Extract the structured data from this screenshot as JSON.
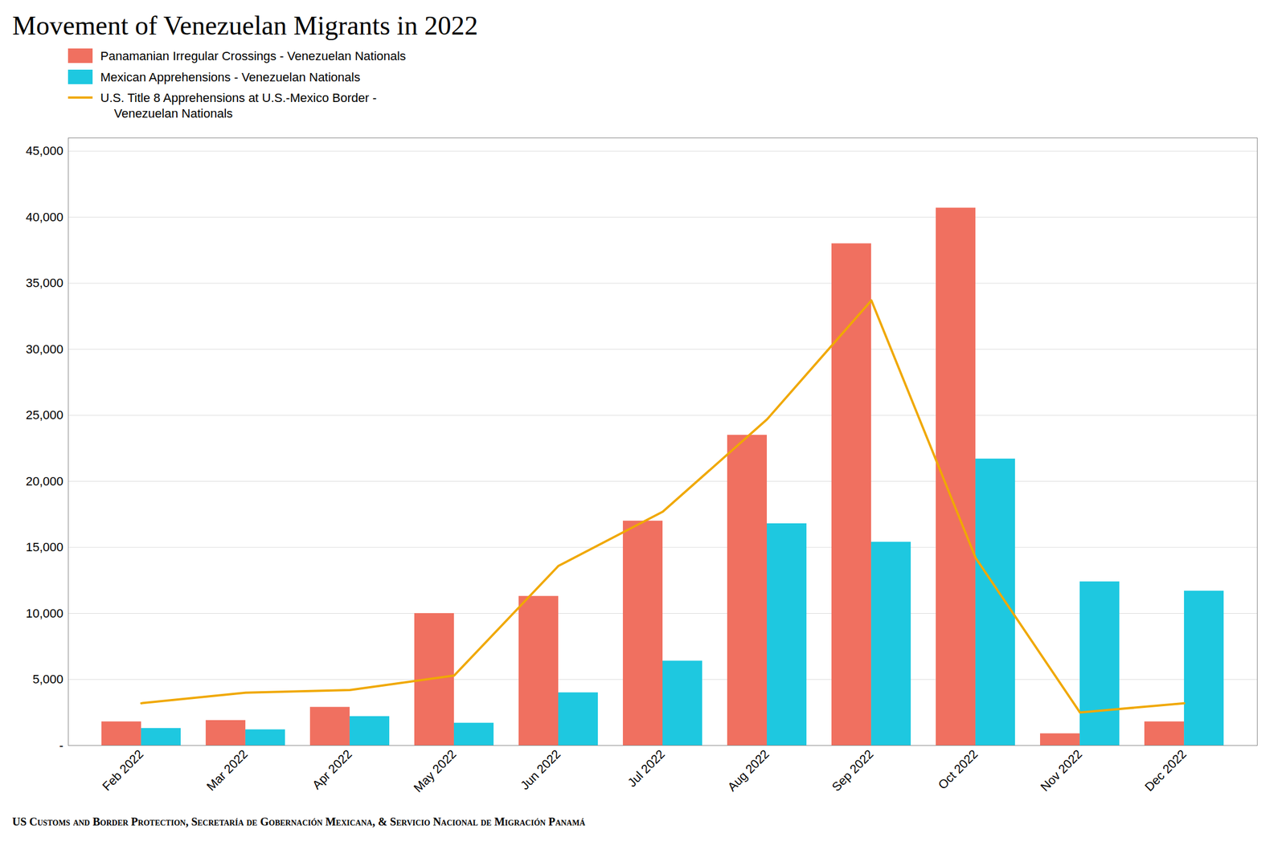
{
  "chart_data": {
    "type": "bar",
    "title": "Movement of Venezuelan Migrants in 2022",
    "categories": [
      "Feb 2022",
      "Mar 2022",
      "Apr 2022",
      "May 2022",
      "Jun 2022",
      "Jul 2022",
      "Aug 2022",
      "Sep 2022",
      "Oct 2022",
      "Nov 2022",
      "Dec 2022"
    ],
    "series": [
      {
        "name": "Panamanian Irregular Crossings - Venezuelan Nationals",
        "color": "#f07060",
        "values": [
          1800,
          1900,
          2900,
          10000,
          11300,
          17000,
          23500,
          38000,
          40700,
          900,
          1800
        ]
      },
      {
        "name": "Mexican Apprehensions - Venezuelan Nationals",
        "color": "#1ec8e0",
        "values": [
          1300,
          1200,
          2200,
          1700,
          4000,
          6400,
          16800,
          15400,
          21700,
          12400,
          11700
        ]
      },
      {
        "name": "U.S. Title 8 Apprehensions at U.S.-Mexico Border -\n    Venezuelan Nationals",
        "type": "line",
        "color": "#f0a800",
        "values": [
          3200,
          4000,
          4200,
          5300,
          13600,
          17700,
          24700,
          33700,
          14200,
          2500,
          3200
        ]
      }
    ],
    "ylim": [
      0,
      46000
    ],
    "yticks": [
      {
        "value": 0,
        "label": "-"
      },
      {
        "value": 5000,
        "label": "5,000"
      },
      {
        "value": 10000,
        "label": "10,000"
      },
      {
        "value": 15000,
        "label": "15,000"
      },
      {
        "value": 20000,
        "label": "20,000"
      },
      {
        "value": 25000,
        "label": "25,000"
      },
      {
        "value": 30000,
        "label": "30,000"
      },
      {
        "value": 35000,
        "label": "35,000"
      },
      {
        "value": 40000,
        "label": "40,000"
      },
      {
        "value": 45000,
        "label": "45,000"
      }
    ],
    "grid": true,
    "legend": "upper left",
    "source": "US Customs and Border Protection, Secretaría de Gobernación Mexicana, & Servicio Nacional de Migración Panamá"
  }
}
